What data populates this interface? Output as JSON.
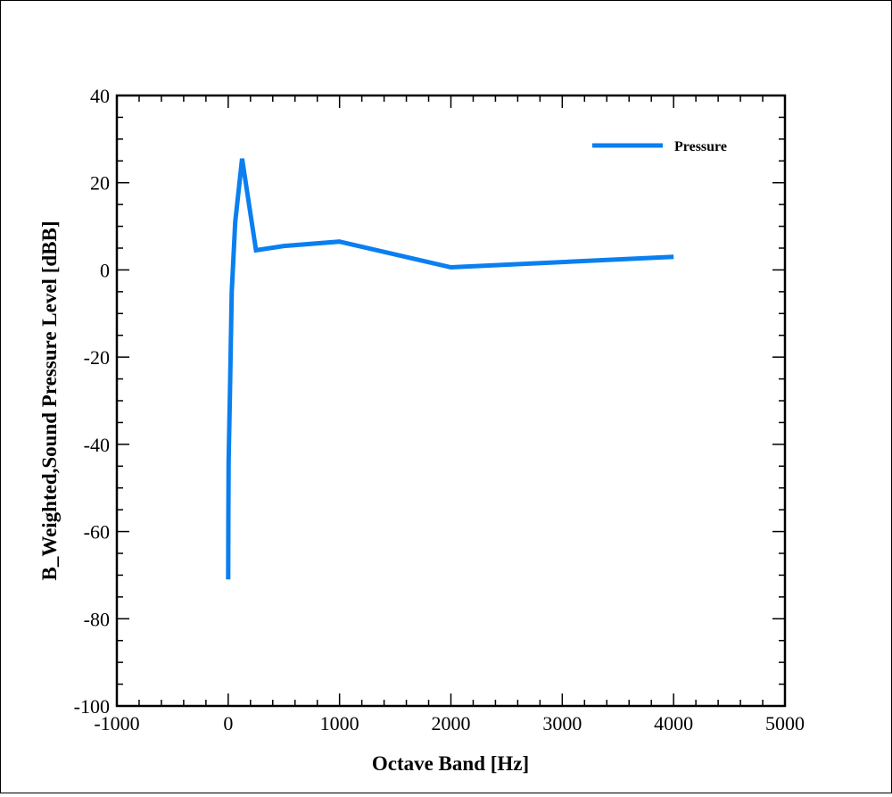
{
  "chart_data": {
    "type": "line",
    "xlabel": "Octave Band [Hz]",
    "ylabel": "B_Weighted,Sound Pressure Level [dBB]",
    "xlim": [
      -1000,
      5000
    ],
    "ylim": [
      -100,
      40
    ],
    "x_ticks": [
      -1000,
      0,
      1000,
      2000,
      3000,
      4000,
      5000
    ],
    "y_ticks": [
      -100,
      -80,
      -60,
      -40,
      -20,
      0,
      20,
      40
    ],
    "x_minor_step": 200,
    "y_minor_step": 5,
    "legend_position": "top-right",
    "grid": false,
    "series": [
      {
        "name": "Pressure",
        "color": "#0a7ff0",
        "x": [
          0,
          1,
          4,
          16,
          31.5,
          63,
          125,
          250,
          500,
          1000,
          2000,
          4000
        ],
        "y": [
          -71,
          -57,
          -44,
          -28,
          -5,
          11,
          25.5,
          4.5,
          5.5,
          6.5,
          0.6,
          3
        ]
      }
    ]
  }
}
